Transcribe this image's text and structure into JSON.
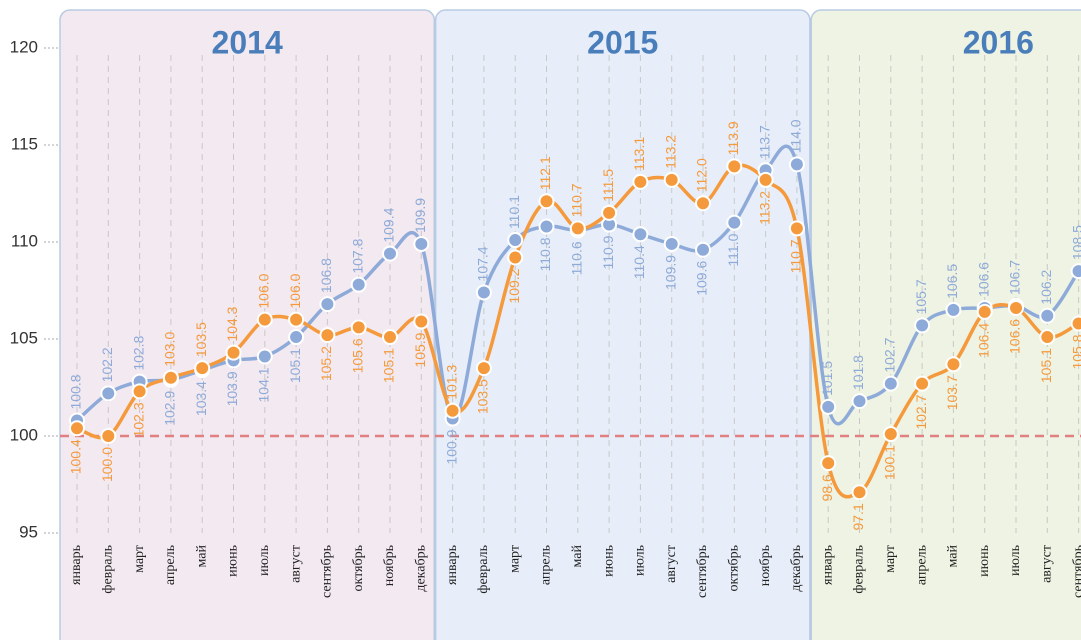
{
  "chart_data": {
    "type": "line",
    "panels": [
      "2014",
      "2015",
      "2016"
    ],
    "categories": [
      "январь",
      "февраль",
      "март",
      "апрель",
      "май",
      "июнь",
      "июль",
      "август",
      "сентябрь",
      "октябрь",
      "ноябрь",
      "декабрь",
      "январь",
      "февраль",
      "март",
      "апрель",
      "май",
      "июнь",
      "июль",
      "август",
      "сентябрь",
      "октябрь",
      "ноябрь",
      "декабрь",
      "январь",
      "февраль",
      "март",
      "апрель",
      "май",
      "июнь",
      "июль",
      "август",
      "сентябрь"
    ],
    "series": [
      {
        "color": "#8eaad8",
        "values": [
          100.8,
          102.2,
          102.8,
          102.9,
          103.4,
          103.9,
          104.1,
          105.1,
          106.8,
          107.8,
          109.4,
          109.9,
          100.9,
          107.4,
          110.1,
          110.8,
          110.6,
          110.9,
          110.4,
          109.9,
          109.6,
          111.0,
          113.7,
          114.0,
          101.5,
          101.8,
          102.7,
          105.7,
          106.5,
          106.6,
          106.7,
          106.2,
          108.5
        ],
        "value_labels": [
          "100.8",
          "102.2",
          "102.8",
          "102.9",
          "103.4",
          "103.9",
          "104.1",
          "105.1",
          "106.8",
          "107.8",
          "109.4",
          "109.9",
          "100.9",
          "107.4",
          "110.1",
          "110.8",
          "110.6",
          "110.9",
          "110.4",
          "109.9",
          "109.6",
          "111.0",
          "113.7",
          "114.0",
          "101.5",
          "101.8",
          "102.7",
          "105.7",
          "106.5",
          "106.6",
          "106.7",
          "106.2",
          "108.5"
        ]
      },
      {
        "color": "#f59a3c",
        "values": [
          100.4,
          100.0,
          102.3,
          103.0,
          103.5,
          104.3,
          106.0,
          106.0,
          105.2,
          105.6,
          105.1,
          105.9,
          101.3,
          103.5,
          109.2,
          112.1,
          110.7,
          111.5,
          113.1,
          113.2,
          112.0,
          113.9,
          113.2,
          110.7,
          98.6,
          97.1,
          100.1,
          102.7,
          103.7,
          106.4,
          106.6,
          105.1,
          105.8
        ],
        "value_labels": [
          "100.4",
          "100.0",
          "102.3",
          "103.0",
          "103.5",
          "104.3",
          "106.0",
          "106.0",
          "105.2",
          "105.6",
          "105.1",
          "105.9",
          "101.3",
          "103.5",
          "109.2",
          "112.1",
          "110.7",
          "111.5",
          "113.1",
          "113.2",
          "112.0",
          "113.9",
          "113.2",
          "110.7",
          "98.6",
          "97.1",
          "100.1",
          "102.7",
          "103.7",
          "106.4",
          "106.6",
          "105.1",
          "105.8"
        ]
      }
    ],
    "ylim": [
      95,
      120
    ],
    "yticks": [
      95,
      100,
      105,
      110,
      115,
      120
    ],
    "reference_line": 100,
    "reference_color": "#e08080",
    "grid": true
  }
}
